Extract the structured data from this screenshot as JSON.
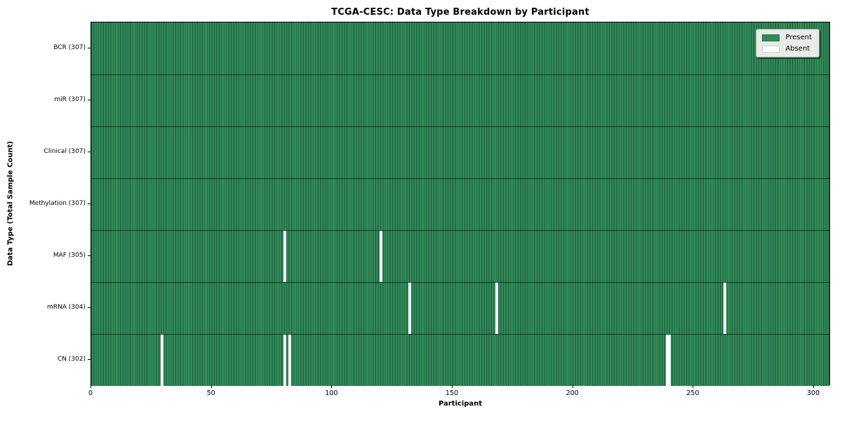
{
  "chart_data": {
    "type": "heatmap",
    "title": "TCGA-CESC: Data Type Breakdown by Participant",
    "xlabel": "Participant",
    "ylabel": "Data Type (Total Sample Count)",
    "x_ticks": [
      0,
      50,
      100,
      150,
      200,
      250,
      300
    ],
    "x_range": [
      0,
      307
    ],
    "total_participants": 307,
    "grid": "cell-edges",
    "legend": {
      "position": "upper right",
      "entries": [
        {
          "label": "Present",
          "color": "#318a58"
        },
        {
          "label": "Absent",
          "color": "#ffffff"
        }
      ]
    },
    "rows": [
      {
        "label": "BCR (307)",
        "data_type": "BCR",
        "present_count": 307,
        "absent_participants": []
      },
      {
        "label": "miR (307)",
        "data_type": "miR",
        "present_count": 307,
        "absent_participants": []
      },
      {
        "label": "Clinical (307)",
        "data_type": "Clinical",
        "present_count": 307,
        "absent_participants": []
      },
      {
        "label": "Methylation (307)",
        "data_type": "Methylation",
        "present_count": 307,
        "absent_participants": []
      },
      {
        "label": "MAF (305)",
        "data_type": "MAF",
        "present_count": 305,
        "absent_participants": [
          80,
          120
        ]
      },
      {
        "label": "mRNA (304)",
        "data_type": "mRNA",
        "present_count": 304,
        "absent_participants": [
          132,
          168,
          263
        ]
      },
      {
        "label": "CN (302)",
        "data_type": "CN",
        "present_count": 302,
        "absent_participants": [
          29,
          80,
          82,
          239,
          240
        ]
      }
    ],
    "colors": {
      "present": "#318a58",
      "absent": "#ffffff",
      "cell_edge": "#1d5a3a",
      "row_divider": "#0a2416",
      "plot_border": "#000000",
      "legend_bg": "#e7ece7",
      "legend_border": "#9a9a9a"
    }
  }
}
